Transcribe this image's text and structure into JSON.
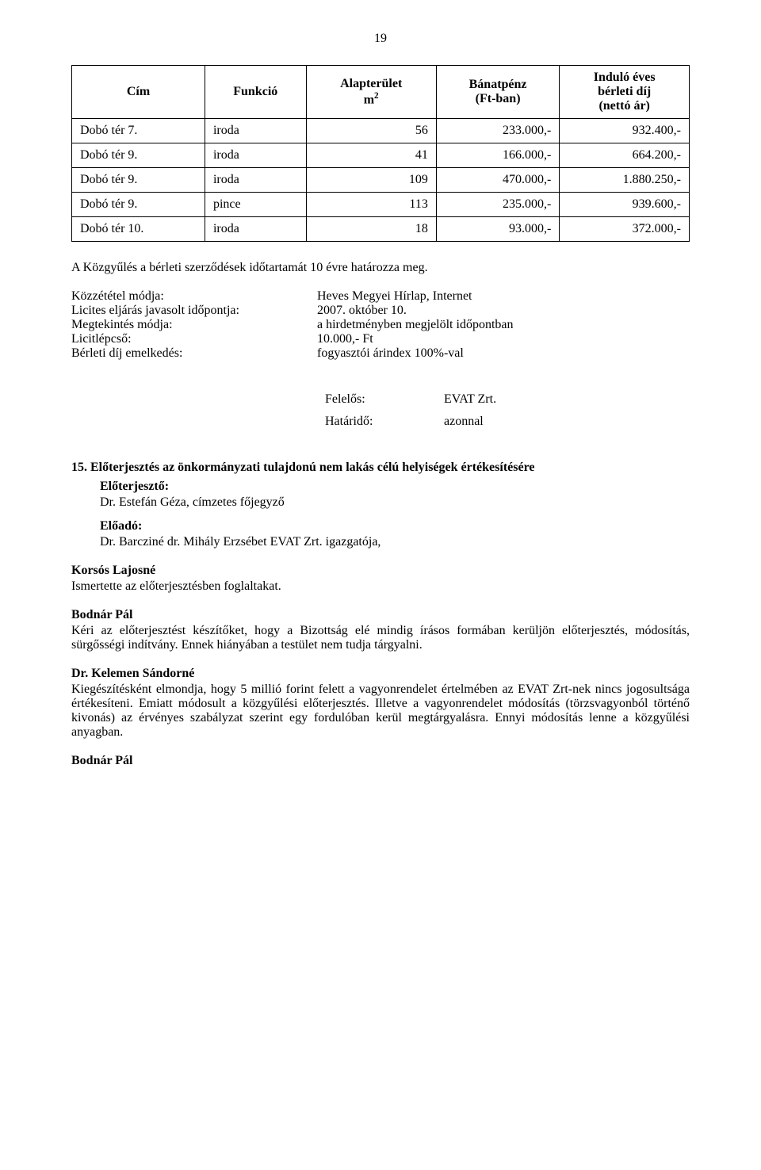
{
  "page_number": "19",
  "table": {
    "headers": {
      "cim": "Cím",
      "funkcio": "Funkció",
      "alapterulet": "Alapterület",
      "alapterulet_unit": "m",
      "alapterulet_sup": "2",
      "banatpenz": "Bánatpénz",
      "banatpenz_sub": "(Ft-ban)",
      "indulo1": "Induló éves",
      "indulo2": "bérleti díj",
      "indulo3": "(nettó ár)"
    },
    "rows": [
      {
        "cim": "Dobó tér 7.",
        "funkcio": "iroda",
        "m2": "56",
        "banat": "233.000,-",
        "indulo": "932.400,-"
      },
      {
        "cim": "Dobó tér 9.",
        "funkcio": "iroda",
        "m2": "41",
        "banat": "166.000,-",
        "indulo": "664.200,-"
      },
      {
        "cim": "Dobó tér 9.",
        "funkcio": "iroda",
        "m2": "109",
        "banat": "470.000,-",
        "indulo": "1.880.250,-"
      },
      {
        "cim": "Dobó tér 9.",
        "funkcio": "pince",
        "m2": "113",
        "banat": "235.000,-",
        "indulo": "939.600,-"
      },
      {
        "cim": "Dobó tér 10.",
        "funkcio": "iroda",
        "m2": "18",
        "banat": "93.000,-",
        "indulo": "372.000,-"
      }
    ]
  },
  "para1": "A Közgyűlés a bérleti szerződések időtartamát  10 évre határozza meg.",
  "kv": [
    {
      "k": "Közzététel módja:",
      "v": "Heves Megyei Hírlap, Internet"
    },
    {
      "k": "Licites eljárás javasolt időpontja:",
      "v": "2007. október 10."
    },
    {
      "k": "Megtekintés módja:",
      "v": "a hirdetményben megjelölt időpontban"
    },
    {
      "k": "Licitlépcső:",
      "v": "10.000,- Ft"
    },
    {
      "k": "Bérleti díj emelkedés:",
      "v": "fogyasztói árindex 100%-val"
    }
  ],
  "twocol": [
    {
      "k": "Felelős:",
      "v": "EVAT Zrt."
    },
    {
      "k": "Határidő:",
      "v": "azonnal"
    }
  ],
  "section15": {
    "title": "15. Előterjesztés az önkormányzati tulajdonú nem lakás célú helyiségek értékesítésére",
    "eloterjeszto_label": "Előterjesztő:",
    "eloterjeszto": "Dr. Estefán Géza, címzetes főjegyző",
    "eloado_label": "Előadó:",
    "eloado": "Dr. Barcziné dr. Mihály Erzsébet EVAT Zrt. igazgatója,"
  },
  "speakers": [
    {
      "name": "Korsós Lajosné",
      "text": "Ismertette az előterjesztésben foglaltakat."
    },
    {
      "name": "Bodnár Pál",
      "text": "Kéri az előterjesztést készítőket, hogy a Bizottság elé mindig írásos formában kerüljön előterjesztés, módosítás, sürgősségi indítvány. Ennek hiányában a testület nem tudja tárgyalni."
    },
    {
      "name": "Dr. Kelemen Sándorné",
      "text": "Kiegészítésként elmondja, hogy 5 millió forint felett a vagyonrendelet értelmében az EVAT Zrt-nek nincs jogosultsága értékesíteni. Emiatt módosult a közgyűlési előterjesztés. Illetve a vagyonrendelet módosítás (törzsvagyonból történő kivonás) az érvényes szabályzat szerint egy fordulóban kerül megtárgyalásra. Ennyi módosítás lenne a közgyűlési anyagban."
    },
    {
      "name": "Bodnár Pál",
      "text": ""
    }
  ]
}
